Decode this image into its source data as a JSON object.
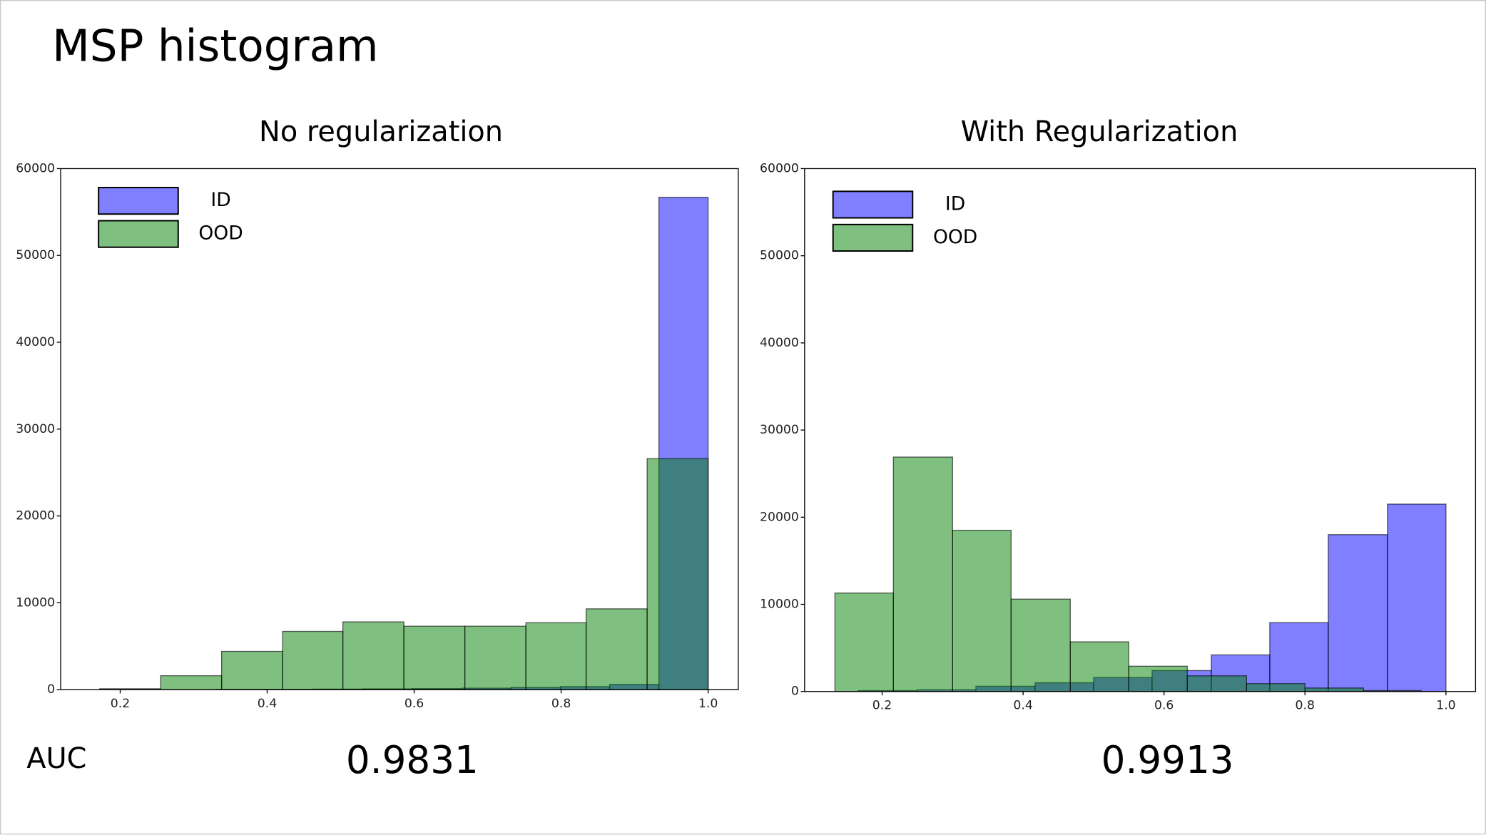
{
  "title": "MSP histogram",
  "auc_label": "AUC",
  "chart_data": [
    {
      "type": "histogram",
      "title": "No regularization",
      "auc": 0.9831,
      "xlim": [
        0.119,
        1.041
      ],
      "ylim": [
        0,
        60000
      ],
      "xticks": [
        0.2,
        0.4,
        0.6,
        0.8,
        {
          "value": 1,
          "label": "1.0"
        }
      ],
      "yticks": [
        0,
        10000,
        20000,
        30000,
        40000,
        50000,
        60000
      ],
      "legend": "upper left",
      "series": [
        {
          "name": "ID",
          "color": "#0000ff",
          "bins": [
            0.329,
            0.396,
            0.463,
            0.53,
            0.597,
            0.665,
            0.732,
            0.799,
            0.866,
            0.933,
            1.0
          ],
          "values": [
            20,
            30,
            60,
            90,
            120,
            170,
            250,
            350,
            600,
            56700
          ]
        },
        {
          "name": "OOD",
          "color": "#008000",
          "bins": [
            0.172,
            0.255,
            0.338,
            0.421,
            0.503,
            0.586,
            0.669,
            0.752,
            0.834,
            0.917,
            1.0
          ],
          "values": [
            100,
            1600,
            4400,
            6700,
            7800,
            7300,
            7300,
            7700,
            9300,
            26600
          ]
        }
      ]
    },
    {
      "type": "histogram",
      "title": "With Regularization",
      "auc": 0.9913,
      "xlim": [
        0.09,
        1.042
      ],
      "ylim": [
        0,
        60000
      ],
      "xticks": [
        0.2,
        0.4,
        0.6,
        0.8,
        {
          "value": 1,
          "label": "1.0"
        }
      ],
      "yticks": [
        0,
        10000,
        20000,
        30000,
        40000,
        50000,
        60000
      ],
      "legend": "upper left",
      "series": [
        {
          "name": "ID",
          "color": "#0000ff",
          "bins": [
            0.166,
            0.25,
            0.333,
            0.417,
            0.5,
            0.583,
            0.667,
            0.75,
            0.833,
            0.917,
            1.0
          ],
          "values": [
            100,
            200,
            600,
            1000,
            1600,
            2400,
            4200,
            7900,
            18000,
            21500
          ]
        },
        {
          "name": "OOD",
          "color": "#008000",
          "bins": [
            0.133,
            0.216,
            0.3,
            0.383,
            0.467,
            0.55,
            0.633,
            0.717,
            0.8,
            0.883,
            0.965
          ],
          "values": [
            11300,
            26900,
            18500,
            10600,
            5700,
            2900,
            1800,
            900,
            400,
            100
          ]
        }
      ]
    }
  ]
}
